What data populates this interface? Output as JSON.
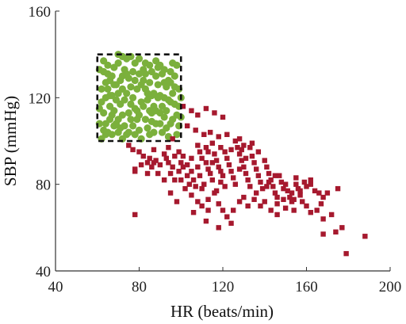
{
  "chart_data": {
    "type": "scatter",
    "title": "",
    "xlabel": "HR (beats/min)",
    "ylabel": "SBP (mmHg)",
    "xlim": [
      40,
      200
    ],
    "ylim": [
      40,
      160
    ],
    "x_ticks": [
      40,
      80,
      120,
      160,
      200
    ],
    "y_ticks": [
      40,
      80,
      120,
      160
    ],
    "x_tick_labels": [
      "40",
      "80",
      "120",
      "160",
      "200"
    ],
    "y_tick_labels": [
      "40",
      "80",
      "120",
      "160"
    ],
    "grid": false,
    "legend": "none",
    "colors": {
      "green": "#7bb03c",
      "red": "#a6192e",
      "box": "#111111",
      "axis": "#333333"
    },
    "region": {
      "x": [
        60,
        100
      ],
      "y": [
        100,
        140
      ],
      "style": "dashed"
    },
    "series": [
      {
        "marker": "circle",
        "color": "#7bb03c",
        "points": [
          [
            61,
            133
          ],
          [
            63,
            137
          ],
          [
            65,
            131
          ],
          [
            66,
            128
          ],
          [
            68,
            134
          ],
          [
            70,
            140
          ],
          [
            72,
            139
          ],
          [
            74,
            138
          ],
          [
            76,
            139
          ],
          [
            78,
            136
          ],
          [
            80,
            138
          ],
          [
            83,
            136
          ],
          [
            85,
            135
          ],
          [
            88,
            137
          ],
          [
            90,
            135
          ],
          [
            92,
            133
          ],
          [
            95,
            132
          ],
          [
            98,
            135
          ],
          [
            62,
            124
          ],
          [
            64,
            120
          ],
          [
            66,
            116
          ],
          [
            67,
            112
          ],
          [
            69,
            108
          ],
          [
            70,
            104
          ],
          [
            72,
            101
          ],
          [
            62,
            118
          ],
          [
            63,
            113
          ],
          [
            64,
            108
          ],
          [
            65,
            104
          ],
          [
            67,
            121
          ],
          [
            68,
            126
          ],
          [
            70,
            122
          ],
          [
            71,
            117
          ],
          [
            72,
            112
          ],
          [
            73,
            107
          ],
          [
            74,
            103
          ],
          [
            75,
            129
          ],
          [
            76,
            125
          ],
          [
            77,
            120
          ],
          [
            78,
            115
          ],
          [
            79,
            110
          ],
          [
            80,
            105
          ],
          [
            81,
            101
          ],
          [
            82,
            128
          ],
          [
            83,
            124
          ],
          [
            84,
            119
          ],
          [
            85,
            114
          ],
          [
            86,
            109
          ],
          [
            87,
            104
          ],
          [
            88,
            130
          ],
          [
            89,
            126
          ],
          [
            90,
            121
          ],
          [
            91,
            116
          ],
          [
            92,
            111
          ],
          [
            93,
            106
          ],
          [
            94,
            102
          ],
          [
            95,
            127
          ],
          [
            96,
            122
          ],
          [
            97,
            117
          ],
          [
            98,
            112
          ],
          [
            99,
            107
          ],
          [
            99,
            124
          ],
          [
            97,
            130
          ],
          [
            95,
            118
          ],
          [
            93,
            125
          ],
          [
            91,
            131
          ],
          [
            89,
            120
          ],
          [
            87,
            116
          ],
          [
            85,
            127
          ],
          [
            83,
            110
          ],
          [
            81,
            118
          ],
          [
            79,
            124
          ],
          [
            77,
            107
          ],
          [
            75,
            113
          ],
          [
            73,
            119
          ],
          [
            71,
            128
          ],
          [
            69,
            119
          ],
          [
            67,
            103
          ],
          [
            66,
            110
          ],
          [
            64,
            127
          ],
          [
            62,
            101
          ],
          [
            61,
            108
          ],
          [
            63,
            132
          ],
          [
            65,
            124
          ],
          [
            68,
            114
          ],
          [
            70,
            110
          ],
          [
            72,
            130
          ],
          [
            74,
            122
          ],
          [
            76,
            117
          ],
          [
            78,
            103
          ],
          [
            80,
            112
          ],
          [
            82,
            133
          ],
          [
            84,
            106
          ],
          [
            86,
            121
          ],
          [
            88,
            108
          ],
          [
            90,
            113
          ],
          [
            92,
            127
          ],
          [
            94,
            119
          ],
          [
            96,
            110
          ],
          [
            98,
            103
          ],
          [
            61,
            115
          ],
          [
            63,
            105
          ],
          [
            65,
            135
          ],
          [
            67,
            130
          ],
          [
            69,
            126
          ],
          [
            71,
            106
          ],
          [
            73,
            133
          ],
          [
            75,
            104
          ],
          [
            77,
            132
          ],
          [
            79,
            114
          ],
          [
            81,
            126
          ],
          [
            83,
            131
          ],
          [
            85,
            103
          ],
          [
            87,
            122
          ],
          [
            89,
            134
          ],
          [
            91,
            104
          ],
          [
            93,
            114
          ],
          [
            95,
            108
          ],
          [
            97,
            125
          ],
          [
            99,
            116
          ],
          [
            70,
            136
          ],
          [
            74,
            131
          ],
          [
            80,
            131
          ],
          [
            86,
            132
          ],
          [
            92,
            120
          ],
          [
            96,
            136
          ],
          [
            78,
            128
          ],
          [
            84,
            122
          ],
          [
            90,
            108
          ],
          [
            76,
            110
          ],
          [
            66,
            121
          ],
          [
            72,
            124
          ],
          [
            88,
            114
          ],
          [
            94,
            128
          ],
          [
            82,
            116
          ],
          [
            68,
            107
          ],
          [
            100,
            120
          ],
          [
            100,
            111
          ],
          [
            64,
            103
          ],
          [
            86,
            113
          ]
        ]
      },
      {
        "marker": "square",
        "color": "#a6192e",
        "points": [
          [
            101,
            116
          ],
          [
            105,
            114
          ],
          [
            108,
            112
          ],
          [
            112,
            115
          ],
          [
            116,
            113
          ],
          [
            120,
            111
          ],
          [
            103,
            107
          ],
          [
            107,
            105
          ],
          [
            111,
            103
          ],
          [
            114,
            104
          ],
          [
            118,
            102
          ],
          [
            122,
            103
          ],
          [
            126,
            100
          ],
          [
            130,
            98
          ],
          [
            133,
            97
          ],
          [
            128,
            101
          ],
          [
            75,
            98
          ],
          [
            77,
            96
          ],
          [
            78,
            87
          ],
          [
            78,
            86
          ],
          [
            80,
            95
          ],
          [
            82,
            93
          ],
          [
            84,
            90
          ],
          [
            85,
            92
          ],
          [
            87,
            96
          ],
          [
            88,
            91
          ],
          [
            90,
            89
          ],
          [
            92,
            94
          ],
          [
            93,
            92
          ],
          [
            94,
            90
          ],
          [
            95,
            85
          ],
          [
            96,
            88
          ],
          [
            97,
            82
          ],
          [
            99,
            86
          ],
          [
            100,
            90
          ],
          [
            101,
            88
          ],
          [
            103,
            84
          ],
          [
            104,
            80
          ],
          [
            105,
            86
          ],
          [
            106,
            82
          ],
          [
            107,
            79
          ],
          [
            108,
            88
          ],
          [
            109,
            84
          ],
          [
            110,
            78
          ],
          [
            111,
            80
          ],
          [
            112,
            90
          ],
          [
            113,
            87
          ],
          [
            114,
            85
          ],
          [
            115,
            82
          ],
          [
            116,
            94
          ],
          [
            117,
            91
          ],
          [
            118,
            88
          ],
          [
            119,
            86
          ],
          [
            120,
            84
          ],
          [
            121,
            95
          ],
          [
            122,
            92
          ],
          [
            123,
            89
          ],
          [
            124,
            86
          ],
          [
            125,
            83
          ],
          [
            126,
            80
          ],
          [
            127,
            97
          ],
          [
            128,
            94
          ],
          [
            129,
            91
          ],
          [
            130,
            88
          ],
          [
            131,
            85
          ],
          [
            132,
            82
          ],
          [
            133,
            79
          ],
          [
            134,
            93
          ],
          [
            135,
            90
          ],
          [
            136,
            87
          ],
          [
            137,
            84
          ],
          [
            138,
            81
          ],
          [
            139,
            78
          ],
          [
            140,
            91
          ],
          [
            141,
            88
          ],
          [
            142,
            85
          ],
          [
            143,
            82
          ],
          [
            144,
            79
          ],
          [
            145,
            76
          ],
          [
            146,
            74
          ],
          [
            147,
            84
          ],
          [
            148,
            81
          ],
          [
            149,
            78
          ],
          [
            150,
            80
          ],
          [
            151,
            77
          ],
          [
            152,
            74
          ],
          [
            153,
            76
          ],
          [
            154,
            73
          ],
          [
            155,
            80
          ],
          [
            156,
            78
          ],
          [
            157,
            75
          ],
          [
            158,
            72
          ],
          [
            159,
            81
          ],
          [
            160,
            79
          ],
          [
            162,
            82
          ],
          [
            164,
            77
          ],
          [
            166,
            76
          ],
          [
            168,
            74
          ],
          [
            170,
            76
          ],
          [
            175,
            78
          ],
          [
            105,
            75
          ],
          [
            108,
            72
          ],
          [
            110,
            70
          ],
          [
            113,
            73
          ],
          [
            116,
            76
          ],
          [
            118,
            71
          ],
          [
            120,
            68
          ],
          [
            122,
            65
          ],
          [
            125,
            68
          ],
          [
            128,
            72
          ],
          [
            130,
            74
          ],
          [
            132,
            70
          ],
          [
            135,
            73
          ],
          [
            138,
            70
          ],
          [
            140,
            72
          ],
          [
            143,
            68
          ],
          [
            146,
            71
          ],
          [
            150,
            69
          ],
          [
            153,
            72
          ],
          [
            160,
            70
          ],
          [
            162,
            67
          ],
          [
            165,
            68
          ],
          [
            168,
            64
          ],
          [
            172,
            66
          ],
          [
            78,
            66
          ],
          [
            100,
            82
          ],
          [
            102,
            78
          ],
          [
            95,
            76
          ],
          [
            98,
            72
          ],
          [
            105,
            92
          ],
          [
            109,
            95
          ],
          [
            112,
            97
          ],
          [
            115,
            99
          ],
          [
            119,
            97
          ],
          [
            124,
            96
          ],
          [
            129,
            96
          ],
          [
            131,
            92
          ],
          [
            134,
            99
          ],
          [
            110,
            92
          ],
          [
            113,
            95
          ],
          [
            168,
            57
          ],
          [
            174,
            58
          ],
          [
            177,
            60
          ],
          [
            179,
            48
          ],
          [
            188,
            56
          ],
          [
            106,
            67
          ],
          [
            112,
            63
          ],
          [
            118,
            60
          ],
          [
            124,
            62
          ],
          [
            96,
            101
          ],
          [
            108,
            98
          ],
          [
            115,
            90
          ],
          [
            117,
            77
          ],
          [
            121,
            79
          ],
          [
            136,
            76
          ],
          [
            141,
            79
          ],
          [
            145,
            84
          ],
          [
            155,
            83
          ],
          [
            162,
            80
          ],
          [
            167,
            71
          ],
          [
            154,
            68
          ],
          [
            146,
            66
          ],
          [
            149,
            73
          ],
          [
            157,
            77
          ],
          [
            119,
            81
          ],
          [
            113,
            68
          ],
          [
            101,
            93
          ],
          [
            103,
            89
          ],
          [
            137,
            95
          ],
          [
            128,
            87
          ],
          [
            87,
            90
          ],
          [
            92,
            82
          ],
          [
            89,
            85
          ],
          [
            86,
            88
          ],
          [
            84,
            85
          ],
          [
            81,
            89
          ],
          [
            94,
            97
          ],
          [
            97,
            93
          ],
          [
            99,
            95
          ],
          [
            142,
            81
          ]
        ]
      }
    ]
  }
}
